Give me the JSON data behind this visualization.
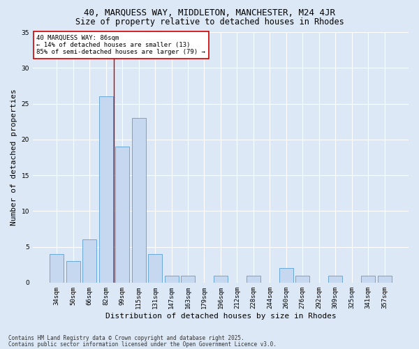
{
  "title1": "40, MARQUESS WAY, MIDDLETON, MANCHESTER, M24 4JR",
  "title2": "Size of property relative to detached houses in Rhodes",
  "xlabel": "Distribution of detached houses by size in Rhodes",
  "ylabel": "Number of detached properties",
  "categories": [
    "34sqm",
    "50sqm",
    "66sqm",
    "82sqm",
    "99sqm",
    "115sqm",
    "131sqm",
    "147sqm",
    "163sqm",
    "179sqm",
    "196sqm",
    "212sqm",
    "228sqm",
    "244sqm",
    "260sqm",
    "276sqm",
    "292sqm",
    "309sqm",
    "325sqm",
    "341sqm",
    "357sqm"
  ],
  "values": [
    4,
    3,
    6,
    26,
    19,
    23,
    4,
    1,
    1,
    0,
    1,
    0,
    1,
    0,
    2,
    1,
    0,
    1,
    0,
    1,
    1
  ],
  "bar_color": "#c5d8f0",
  "bar_edge_color": "#5a9fd4",
  "vline_x": 3.5,
  "vline_color": "#cc0000",
  "ylim": [
    0,
    35
  ],
  "yticks": [
    0,
    5,
    10,
    15,
    20,
    25,
    30,
    35
  ],
  "annotation_text": "40 MARQUESS WAY: 86sqm\n← 14% of detached houses are smaller (13)\n85% of semi-detached houses are larger (79) →",
  "annotation_box_color": "#cc0000",
  "footer1": "Contains HM Land Registry data © Crown copyright and database right 2025.",
  "footer2": "Contains public sector information licensed under the Open Government Licence v3.0.",
  "background_color": "#dce8f5",
  "plot_background_color": "#dce8f5",
  "grid_color": "#ffffff",
  "title_fontsize": 9,
  "subtitle_fontsize": 8.5,
  "tick_fontsize": 6.5,
  "label_fontsize": 8,
  "footer_fontsize": 5.5,
  "annot_fontsize": 6.5
}
